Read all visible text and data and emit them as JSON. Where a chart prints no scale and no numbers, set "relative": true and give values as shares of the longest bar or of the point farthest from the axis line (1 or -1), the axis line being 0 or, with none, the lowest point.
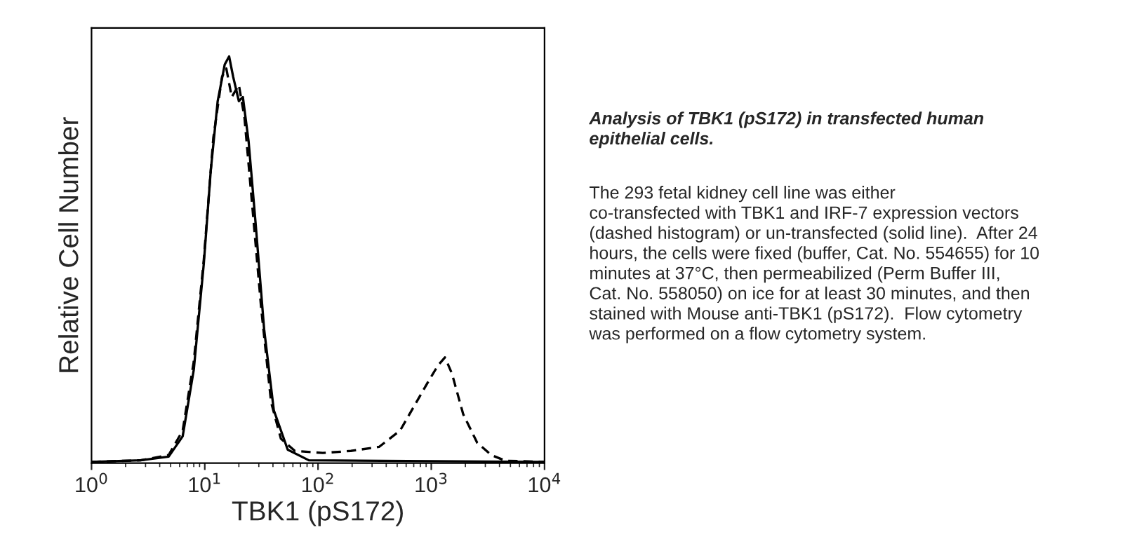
{
  "chart_data": {
    "type": "line",
    "relative": true,
    "log": "x",
    "xlabel": "TBK1 (pS172)",
    "ylabel": "Relative Cell Number",
    "xlim": [
      1,
      10000
    ],
    "xticks": [
      {
        "value": 1,
        "label": "10$^{0}$"
      },
      {
        "value": 10,
        "label": "10$^{1}$"
      },
      {
        "value": 100,
        "label": "10$^{2}$"
      },
      {
        "value": 1000,
        "label": "10$^{3}$"
      },
      {
        "value": 10000,
        "label": "10$^{4}$"
      }
    ],
    "grid": false,
    "legend": false,
    "series": [
      {
        "color": "#000000",
        "line_style": "solid",
        "x": [
          1,
          2.71,
          4.8,
          6.38,
          8.0,
          9.8,
          11.3,
          13.0,
          15.0,
          16.4,
          17.8,
          20,
          21.7,
          24.4,
          28.1,
          33.4,
          40.7,
          54,
          83,
          10000
        ],
        "values": [
          0.003,
          0.007,
          0.016,
          0.066,
          0.23,
          0.49,
          0.72,
          0.89,
          0.98,
          1.0,
          0.95,
          0.89,
          0.9,
          0.79,
          0.59,
          0.33,
          0.13,
          0.033,
          0.007,
          0.003
        ]
      },
      {
        "color": "#000000",
        "line_style": "dashed",
        "x": [
          1,
          2.71,
          4.8,
          6.38,
          8.0,
          9.8,
          11.9,
          14.2,
          15.5,
          17.3,
          20,
          22.4,
          26.5,
          31.5,
          38.5,
          47,
          62.5,
          110,
          195,
          346,
          530,
          705,
          938,
          1145,
          1320,
          1523,
          1915,
          2545,
          3380,
          4500,
          10000
        ],
        "values": [
          0.003,
          0.007,
          0.02,
          0.08,
          0.25,
          0.5,
          0.8,
          0.95,
          0.97,
          0.9,
          0.93,
          0.85,
          0.62,
          0.38,
          0.15,
          0.06,
          0.03,
          0.025,
          0.03,
          0.04,
          0.08,
          0.14,
          0.2,
          0.24,
          0.26,
          0.22,
          0.12,
          0.05,
          0.02,
          0.006,
          0.003
        ]
      }
    ],
    "annotations": [
      "Analysis of TBK1 (pS172) in transfected human\nepithelial cells.",
      "The 293 fetal kidney cell line was either\nco-transfected with TBK1 and IRF-7 expression vectors\n(dashed histogram) or un-transfected (solid line).  After 24\nhours, the cells were fixed (buffer, Cat. No. 554655) for 10\nminutes at 37°C, then permeabilized (Perm Buffer III,\nCat. No. 558050) on ice for at least 30 minutes, and then\nstained with Mouse anti-TBK1 (pS172).  Flow cytometry\nwas performed on a flow cytometry system."
    ]
  }
}
